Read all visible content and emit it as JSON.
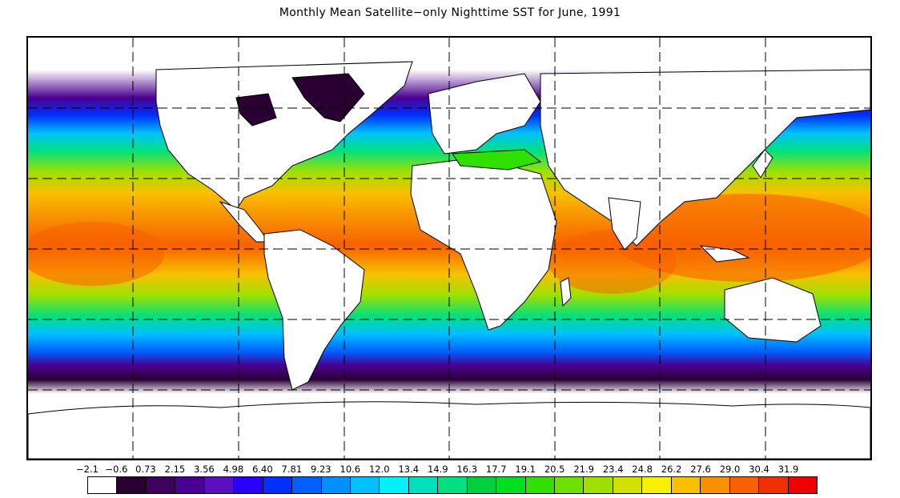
{
  "title": "Monthly Mean Satellite−only Nighttime SST for June, 1991",
  "map": {
    "projection": "equirectangular",
    "grid": "dashed",
    "land_color": "#ffffff",
    "coastline_color": "#000000"
  },
  "legend": {
    "labels": [
      "−2.1",
      "−0.6",
      "0.73",
      "2.15",
      "3.56",
      "4.98",
      "6.40",
      "7.81",
      "9.23",
      "10.6",
      "12.0",
      "13.4",
      "14.9",
      "16.3",
      "17.7",
      "19.1",
      "20.5",
      "21.9",
      "23.4",
      "24.8",
      "26.2",
      "27.6",
      "29.0",
      "30.4",
      "31.9"
    ],
    "colors": [
      "#ffffff",
      "#2a0033",
      "#3f0060",
      "#4a0090",
      "#5a10c0",
      "#2a00ff",
      "#0030ff",
      "#0060ff",
      "#0090ff",
      "#00c0ff",
      "#00f0ff",
      "#00e0c0",
      "#00e080",
      "#00d040",
      "#00e020",
      "#30e000",
      "#70e000",
      "#a0e000",
      "#d0e000",
      "#f8f000",
      "#f8c000",
      "#f89000",
      "#f86000",
      "#f03000",
      "#f00000"
    ]
  }
}
